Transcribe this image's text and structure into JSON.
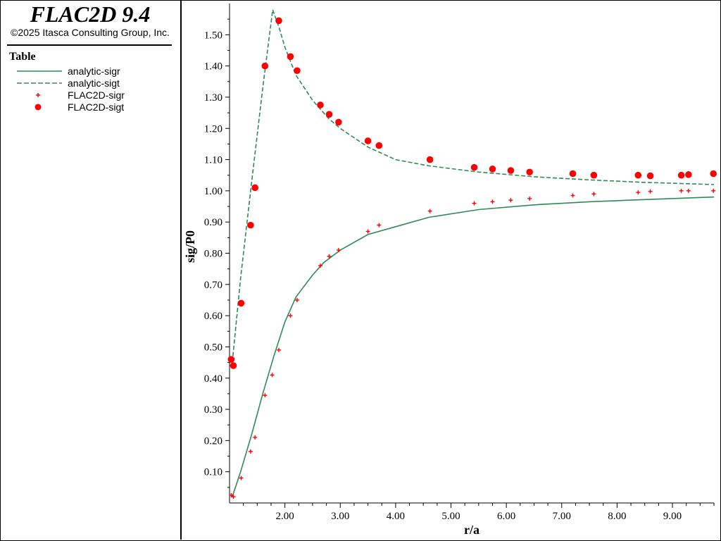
{
  "app": {
    "title": "FLAC2D 9.4",
    "copyright": "©2025 Itasca Consulting Group, Inc."
  },
  "legend": {
    "title": "Table",
    "items": [
      {
        "label": "analytic-sigr",
        "style": "solid-line",
        "color": "#2e8b57"
      },
      {
        "label": "analytic-sigt",
        "style": "dashed-line",
        "color": "#2e8b57"
      },
      {
        "label": "FLAC2D-sigr",
        "style": "plus-marker",
        "color": "#ff0000"
      },
      {
        "label": "FLAC2D-sigt",
        "style": "circle-marker",
        "color": "#ff0000"
      }
    ]
  },
  "chart_data": {
    "type": "line",
    "xlabel": "r/a",
    "ylabel": "sig/P0",
    "xlim": [
      1.0,
      9.75
    ],
    "ylim": [
      0.0,
      1.6
    ],
    "xticks": [
      "2.00",
      "3.00",
      "4.00",
      "5.00",
      "6.00",
      "7.00",
      "8.00",
      "9.00"
    ],
    "yticks": [
      "0.10",
      "0.20",
      "0.30",
      "0.40",
      "0.50",
      "0.60",
      "0.70",
      "0.80",
      "0.90",
      "1.00",
      "1.10",
      "1.20",
      "1.30",
      "1.40",
      "1.50"
    ],
    "grid": false,
    "legend_placement": "left-panel",
    "series": [
      {
        "name": "analytic-sigr",
        "style": "solid-line",
        "color": "#2e8b57",
        "x": [
          1.05,
          1.2,
          1.4,
          1.6,
          1.8,
          2.0,
          2.2,
          2.5,
          2.7,
          3.0,
          3.5,
          4.0,
          4.6,
          5.5,
          6.5,
          7.5,
          8.5,
          9.75
        ],
        "y": [
          0.02,
          0.1,
          0.22,
          0.35,
          0.47,
          0.58,
          0.66,
          0.73,
          0.77,
          0.81,
          0.86,
          0.885,
          0.915,
          0.94,
          0.955,
          0.965,
          0.972,
          0.98
        ]
      },
      {
        "name": "analytic-sigt",
        "style": "dashed-line",
        "color": "#2e8b57",
        "x": [
          1.05,
          1.2,
          1.4,
          1.6,
          1.78,
          1.9,
          2.0,
          2.2,
          2.5,
          2.8,
          3.0,
          3.5,
          4.0,
          4.6,
          5.5,
          6.5,
          7.5,
          8.5,
          9.75
        ],
        "y": [
          0.45,
          0.72,
          1.03,
          1.33,
          1.58,
          1.52,
          1.46,
          1.37,
          1.29,
          1.23,
          1.2,
          1.14,
          1.1,
          1.08,
          1.06,
          1.045,
          1.035,
          1.027,
          1.02
        ]
      },
      {
        "name": "FLAC2D-sigr",
        "style": "plus-marker",
        "color": "#ff0000",
        "x": [
          1.03,
          1.07,
          1.21,
          1.38,
          1.46,
          1.64,
          1.77,
          1.89,
          2.1,
          2.22,
          2.64,
          2.8,
          2.97,
          3.5,
          3.7,
          4.62,
          5.42,
          5.75,
          6.08,
          6.42,
          7.2,
          7.58,
          8.38,
          8.6,
          9.16,
          9.29,
          9.74
        ],
        "y": [
          0.025,
          0.02,
          0.08,
          0.165,
          0.21,
          0.345,
          0.41,
          0.49,
          0.6,
          0.65,
          0.76,
          0.79,
          0.81,
          0.87,
          0.89,
          0.935,
          0.96,
          0.965,
          0.97,
          0.975,
          0.985,
          0.99,
          0.995,
          0.998,
          1.0,
          1.0,
          1.0
        ]
      },
      {
        "name": "FLAC2D-sigt",
        "style": "circle-marker",
        "color": "#ff0000",
        "x": [
          1.03,
          1.07,
          1.21,
          1.38,
          1.46,
          1.64,
          1.89,
          2.1,
          2.22,
          2.64,
          2.8,
          2.97,
          3.5,
          3.7,
          4.62,
          5.42,
          5.75,
          6.08,
          6.42,
          7.2,
          7.58,
          8.38,
          8.6,
          9.16,
          9.29,
          9.74
        ],
        "y": [
          0.46,
          0.44,
          0.64,
          0.89,
          1.01,
          1.4,
          1.545,
          1.43,
          1.385,
          1.275,
          1.245,
          1.22,
          1.16,
          1.145,
          1.1,
          1.075,
          1.07,
          1.065,
          1.06,
          1.055,
          1.05,
          1.05,
          1.048,
          1.05,
          1.052,
          1.055
        ]
      }
    ]
  }
}
